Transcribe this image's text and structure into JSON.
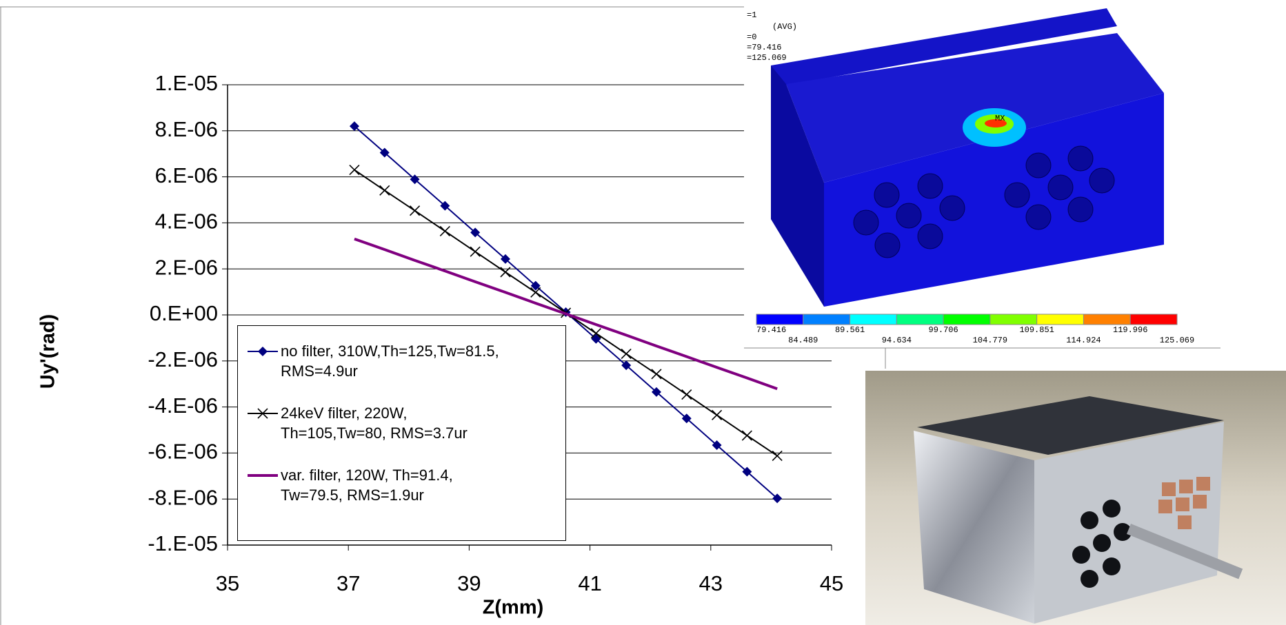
{
  "chart_data": {
    "type": "line",
    "x_label": "Z(mm)",
    "y_label": "Uy'(rad)",
    "x": [
      37.1,
      37.6,
      38.1,
      38.6,
      39.1,
      39.6,
      40.1,
      40.6,
      41.1,
      41.6,
      42.1,
      42.6,
      43.1,
      43.6,
      44.1
    ],
    "series": [
      {
        "name": "no filter, 310W,Th=125,Tw=81.5,\nRMS=4.9ur",
        "color": "#000080",
        "marker": "diamond",
        "values": [
          8.2e-06,
          7.05e-06,
          5.89e-06,
          4.74e-06,
          3.58e-06,
          2.43e-06,
          1.27e-06,
          1.2e-07,
          -1.04e-06,
          -2.19e-06,
          -3.35e-06,
          -4.5e-06,
          -5.66e-06,
          -6.81e-06,
          -7.97e-06
        ]
      },
      {
        "name": "24keV filter, 220W,\nTh=105,Tw=80, RMS=3.7ur",
        "color": "#000000",
        "marker": "x",
        "values": [
          6.3e-06,
          5.41e-06,
          4.53e-06,
          3.64e-06,
          2.75e-06,
          1.86e-06,
          9.8e-07,
          9e-08,
          -8e-07,
          -1.69e-06,
          -2.57e-06,
          -3.46e-06,
          -4.35e-06,
          -5.24e-06,
          -6.12e-06
        ]
      },
      {
        "name": "var. filter, 120W, Th=91.4,\nTw=79.5, RMS=1.9ur",
        "color": "#800080",
        "marker": "none",
        "values": [
          3.3e-06,
          2.84e-06,
          2.37e-06,
          1.91e-06,
          1.44e-06,
          9.8e-07,
          5.1e-07,
          5e-08,
          -4.2e-07,
          -8.8e-07,
          -1.35e-06,
          -1.81e-06,
          -2.28e-06,
          -2.74e-06,
          -3.21e-06
        ]
      }
    ],
    "xlim": [
      35,
      45
    ],
    "xticks": [
      35,
      37,
      39,
      41,
      43,
      45
    ],
    "ylim": [
      -1e-05,
      1e-05
    ],
    "yticks": [
      {
        "value": -1e-05,
        "label": "-1.E-05"
      },
      {
        "value": -8e-06,
        "label": "-8.E-06"
      },
      {
        "value": -6e-06,
        "label": "-6.E-06"
      },
      {
        "value": -4e-06,
        "label": "-4.E-06"
      },
      {
        "value": -2e-06,
        "label": "-2.E-06"
      },
      {
        "value": 0,
        "label": "0.E+00"
      },
      {
        "value": 2e-06,
        "label": "2.E-06"
      },
      {
        "value": 4e-06,
        "label": "4.E-06"
      },
      {
        "value": 6e-06,
        "label": "6.E-06"
      },
      {
        "value": 8e-06,
        "label": "8.E-06"
      },
      {
        "value": 1e-05,
        "label": "1.E-05"
      }
    ],
    "grid": true,
    "legend": "lower-left"
  },
  "inset": {
    "header": [
      "=1",
      "(AVG)",
      "=0",
      "=79.416",
      "=125.069"
    ],
    "max_label": "MX",
    "colorbar": {
      "colors": [
        "#0000ff",
        "#0080ff",
        "#00ffff",
        "#00ff80",
        "#00ff00",
        "#80ff00",
        "#ffff00",
        "#ff8000",
        "#ff0000"
      ],
      "labels": [
        "79.416",
        "84.489",
        "89.561",
        "94.634",
        "99.706",
        "104.779",
        "109.851",
        "114.924",
        "119.996",
        "125.069"
      ]
    }
  }
}
